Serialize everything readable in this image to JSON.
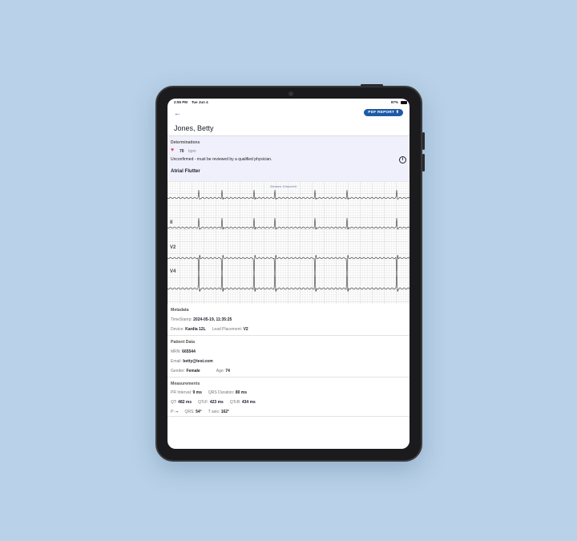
{
  "status": {
    "time": "2:55 PM",
    "date": "Tue Jun 4",
    "battery": "87%"
  },
  "header": {
    "back_icon": "arrow-left-icon",
    "pdf_label": "PDF REPORT",
    "pdf_icon": "share-icon",
    "patient_name": "Jones, Betty"
  },
  "determinations": {
    "title": "Determinations",
    "heart_rate": "70",
    "unit": "bpm",
    "note": "Unconfirmed - must be reviewed by a qualified physician.",
    "diagnosis": "Atrial Flutter",
    "heart_color": "#e5484d"
  },
  "ecg": {
    "scale": "25mm/s 10mm/mV",
    "leads": [
      "II",
      "V2",
      "V4"
    ]
  },
  "metadata": {
    "title": "Metadata",
    "timestamp_label": "TimeStamp:",
    "timestamp": "2024-05-19, 11:35:25",
    "device_label": "Device:",
    "device": "Kardia 12L",
    "lead_label": "Lead Placement:",
    "lead": "V2"
  },
  "patient": {
    "title": "Patient Data",
    "mrn_label": "MRN:",
    "mrn": "665544",
    "email_label": "Email:",
    "email": "betty@test.com",
    "gender_label": "Gender:",
    "gender": "Female",
    "age_label": "Age:",
    "age": "74"
  },
  "measurements": {
    "title": "Measurements",
    "pr_label": "PR Interval:",
    "pr": "9 ms",
    "qrs_label": "QRS Duration:",
    "qrs": "80 ms",
    "qt_label": "QT:",
    "qt": "482 ms",
    "qtcf_label": "QTcF:",
    "qtcf": "423 ms",
    "qtcb_label": "QTcB:",
    "qtcb": "434 ms",
    "p_label": "P:",
    "p": "--",
    "qrsaxis_label": "QRS:",
    "qrsaxis": "54°",
    "taxis_label": "T axis:",
    "taxis": "162°"
  }
}
